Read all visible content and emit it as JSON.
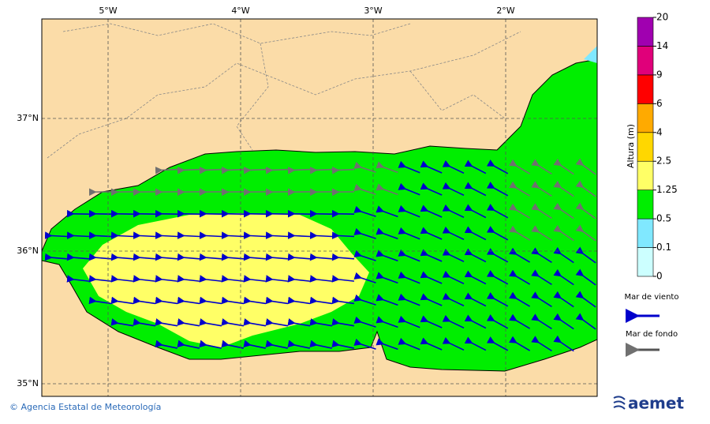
{
  "map": {
    "lon_labels": [
      "5°W",
      "4°W",
      "3°W",
      "2°W"
    ],
    "lat_labels": [
      "37°N",
      "36°N",
      "35°N"
    ]
  },
  "colorbar": {
    "title": "Altura (m)",
    "levels": [
      0,
      0.1,
      0.5,
      1.25,
      2.5,
      4,
      6,
      9,
      14,
      20
    ],
    "colors": [
      "#ccffff",
      "#80e8ff",
      "#00ee00",
      "#ffff66",
      "#ffd700",
      "#ffaa00",
      "#ff0000",
      "#e0007a",
      "#a000b0"
    ]
  },
  "legend": {
    "wind_sea": "Mar de viento",
    "swell": "Mar de fondo"
  },
  "footer": {
    "credit": "© Agencia Estatal de Meteorología",
    "logo": "aemet"
  }
}
